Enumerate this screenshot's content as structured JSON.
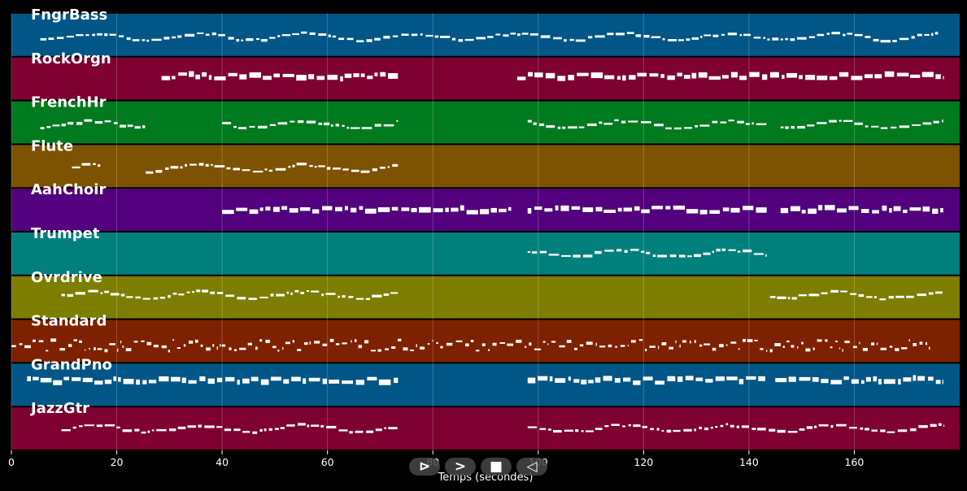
{
  "chart_data": {
    "type": "piano-roll",
    "xlabel": "Temps (secondes)",
    "xlim": [
      0,
      180
    ],
    "xticks": [
      0,
      20,
      40,
      60,
      80,
      100,
      120,
      140,
      160
    ],
    "xtick_labels": [
      "0",
      "20",
      "40",
      "60",
      "80",
      "100",
      "120",
      "140",
      "160"
    ],
    "grid": true,
    "tracks": [
      {
        "name": "FngrBass",
        "color": "#005687",
        "segments": [
          [
            5.5,
            73.5
          ],
          [
            74,
            176
          ]
        ],
        "style": "line",
        "level": 0.55
      },
      {
        "name": "RockOrgn",
        "color": "#7d0030",
        "segments": [
          [
            28.5,
            73.5
          ],
          [
            96,
            177
          ]
        ],
        "style": "blocks",
        "level": 0.45
      },
      {
        "name": "FrenchHr",
        "color": "#007a1e",
        "segments": [
          [
            5.5,
            25.5
          ],
          [
            40,
            73.5
          ],
          [
            98,
            143.5
          ],
          [
            146,
            177
          ]
        ],
        "style": "line",
        "level": 0.55
      },
      {
        "name": "Flute",
        "color": "#7d5200",
        "segments": [
          [
            11.5,
            17
          ],
          [
            25.5,
            73.5
          ]
        ],
        "style": "line",
        "level": 0.55
      },
      {
        "name": "AahChoir",
        "color": "#52007d",
        "segments": [
          [
            40,
            73.5
          ],
          [
            74,
            95
          ],
          [
            98,
            143.5
          ],
          [
            146,
            177
          ]
        ],
        "style": "blocks",
        "level": 0.5
      },
      {
        "name": "Trumpet",
        "color": "#00807d",
        "segments": [
          [
            98,
            143.5
          ]
        ],
        "style": "line",
        "level": 0.5
      },
      {
        "name": "Ovrdrive",
        "color": "#7d7d00",
        "segments": [
          [
            9.5,
            73.5
          ],
          [
            144,
            177
          ]
        ],
        "style": "line",
        "level": 0.45
      },
      {
        "name": "Standard",
        "color": "#7d2100",
        "segments": [
          [
            0,
            174.5
          ]
        ],
        "style": "dense",
        "level": 0.6
      },
      {
        "name": "GrandPno",
        "color": "#005687",
        "segments": [
          [
            3,
            73.5
          ],
          [
            98,
            143.5
          ],
          [
            145,
            173.5
          ],
          [
            174,
            177
          ]
        ],
        "style": "blocks",
        "level": 0.4
      },
      {
        "name": "JazzGtr",
        "color": "#7d0030",
        "segments": [
          [
            9.5,
            73.5
          ],
          [
            98,
            177
          ]
        ],
        "style": "line",
        "level": 0.5
      }
    ]
  },
  "controls": {
    "play_symbol": "⊳",
    "next_symbol": ">",
    "stop_symbol": "■",
    "back_symbol": "◁"
  }
}
